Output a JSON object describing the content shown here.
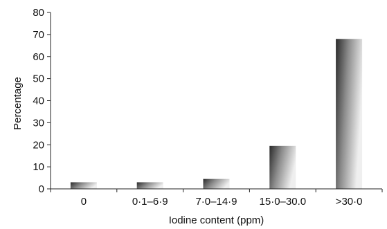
{
  "chart_data": {
    "type": "bar",
    "categories": [
      "0",
      "0·1–6·9",
      "7·0–14·9",
      "15·0–30.0",
      ">30·0"
    ],
    "values": [
      3,
      3,
      4.5,
      19.5,
      68
    ],
    "xlabel": "Iodine content (ppm)",
    "ylabel": "Percentage",
    "ylim": [
      0,
      80
    ],
    "yticks": [
      "0",
      "10",
      "20",
      "30",
      "40",
      "50",
      "60",
      "70",
      "80"
    ],
    "bar_colors": {
      "dark": "#2a2a2a",
      "mid": "#8c8c8c",
      "light": "#efefef"
    },
    "grid": false,
    "legend": "none"
  }
}
